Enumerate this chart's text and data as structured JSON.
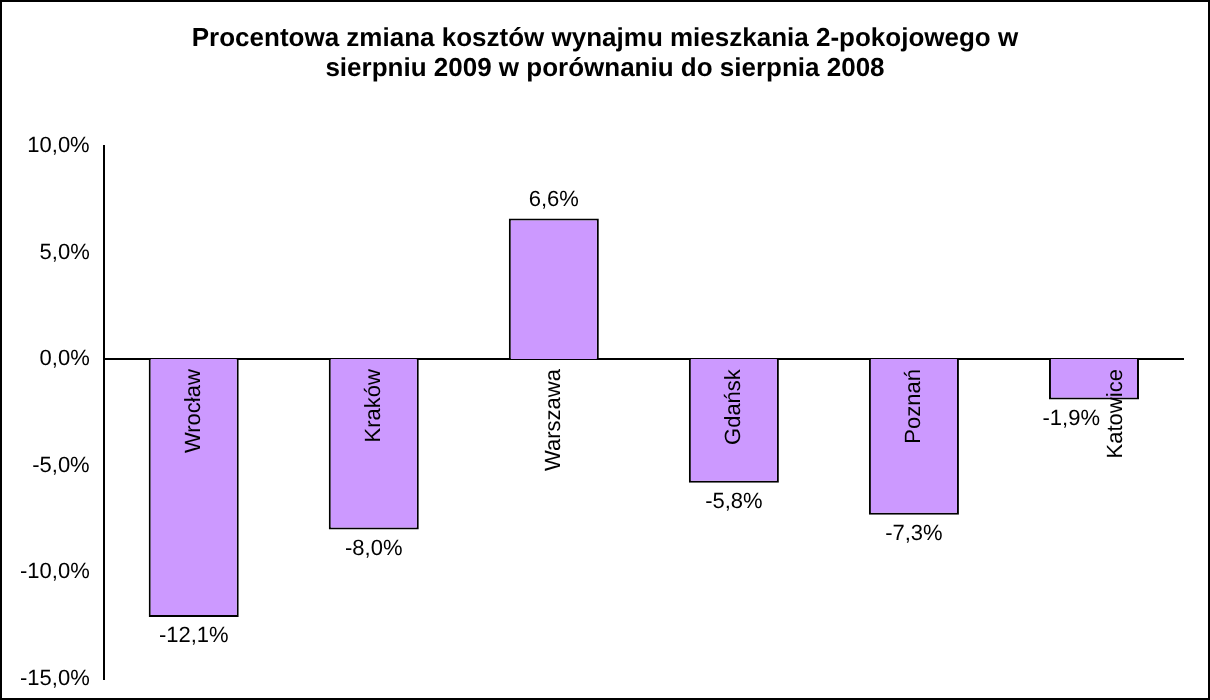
{
  "chart_data": {
    "type": "bar",
    "title": "Procentowa zmiana kosztów wynajmu mieszkania 2-pokojowego w sierpniu 2009 w porównaniu do sierpnia 2008",
    "categories": [
      "Wrocław",
      "Kraków",
      "Warszawa",
      "Gdańsk",
      "Poznań",
      "Katowice"
    ],
    "values": [
      -12.1,
      -8.0,
      6.6,
      -5.8,
      -7.3,
      -1.9
    ],
    "value_labels": [
      "-12,1%",
      "-8,0%",
      "6,6%",
      "-5,8%",
      "-7,3%",
      "-1,9%"
    ],
    "color": "#cc99ff",
    "ylim": [
      -15,
      10
    ],
    "yticks": [
      {
        "value": -15,
        "label": "-15,0%"
      },
      {
        "value": -10,
        "label": "-10,0%"
      },
      {
        "value": -5,
        "label": "-5,0%"
      },
      {
        "value": 0,
        "label": "0,0%"
      },
      {
        "value": 5,
        "label": "5,0%"
      },
      {
        "value": 10,
        "label": "10,0%"
      }
    ],
    "grid": false,
    "legend": false
  }
}
